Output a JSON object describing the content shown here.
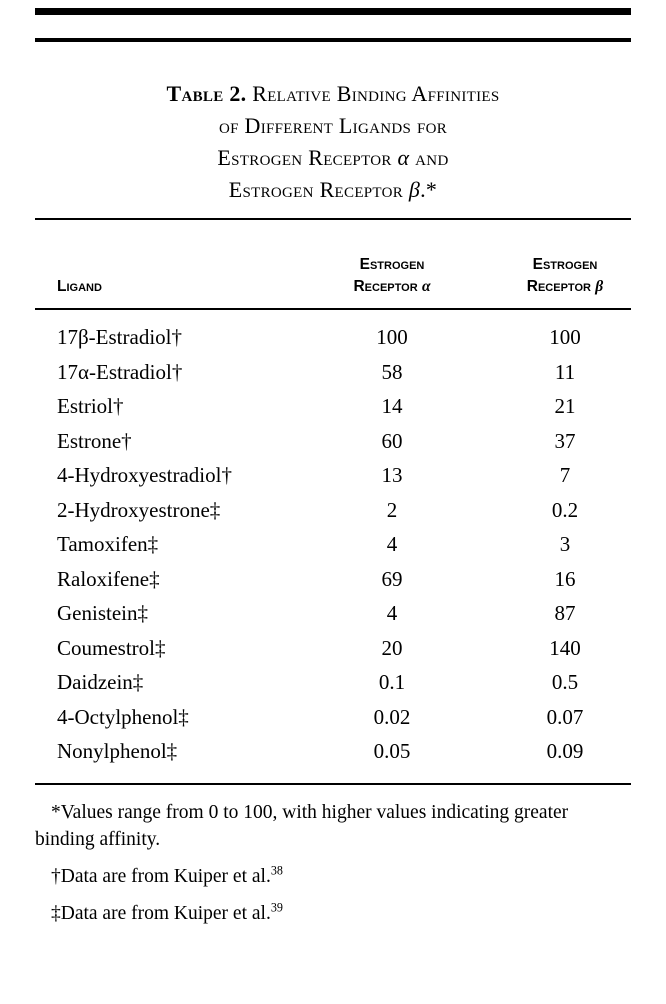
{
  "page": {
    "background": "#ffffff",
    "text_color": "#000000"
  },
  "table": {
    "title": {
      "label": "Table 2.",
      "line1_rest": " Relative Binding Affinities",
      "line2": "of Different Ligands for",
      "line3_text": "Estrogen Receptor ",
      "line3_greek": "α",
      "line3_end": " and",
      "line4_text": "Estrogen Receptor ",
      "line4_greek": "β",
      "line4_end": ".*"
    },
    "headers": {
      "ligand": "Ligand",
      "alpha_line1": "Estrogen",
      "alpha_line2": "Receptor ",
      "alpha_greek": "α",
      "beta_line1": "Estrogen",
      "beta_line2": "Receptor ",
      "beta_greek": "β"
    },
    "rows": [
      {
        "ligand": "17β-Estradiol†",
        "alpha": "100",
        "beta": "100"
      },
      {
        "ligand": "17α-Estradiol†",
        "alpha": "58",
        "beta": "11"
      },
      {
        "ligand": "Estriol†",
        "alpha": "14",
        "beta": "21"
      },
      {
        "ligand": "Estrone†",
        "alpha": "60",
        "beta": "37"
      },
      {
        "ligand": "4-Hydroxyestradiol†",
        "alpha": "13",
        "beta": "7"
      },
      {
        "ligand": "2-Hydroxyestrone‡",
        "alpha": "2",
        "beta": "0.2"
      },
      {
        "ligand": "Tamoxifen‡",
        "alpha": "4",
        "beta": "3"
      },
      {
        "ligand": "Raloxifene‡",
        "alpha": "69",
        "beta": "16"
      },
      {
        "ligand": "Genistein‡",
        "alpha": "4",
        "beta": "87"
      },
      {
        "ligand": "Coumestrol‡",
        "alpha": "20",
        "beta": "140"
      },
      {
        "ligand": "Daidzein‡",
        "alpha": "0.1",
        "beta": "0.5"
      },
      {
        "ligand": "4-Octylphenol‡",
        "alpha": "0.02",
        "beta": "0.07"
      },
      {
        "ligand": "Nonylphenol‡",
        "alpha": "0.05",
        "beta": "0.09"
      }
    ],
    "footnotes": [
      {
        "text": "*Values range from 0 to 100, with higher values indicating greater binding affinity.",
        "sup": ""
      },
      {
        "text": "†Data are from Kuiper et al.",
        "sup": "38"
      },
      {
        "text": "‡Data are from Kuiper et al.",
        "sup": "39"
      }
    ]
  }
}
